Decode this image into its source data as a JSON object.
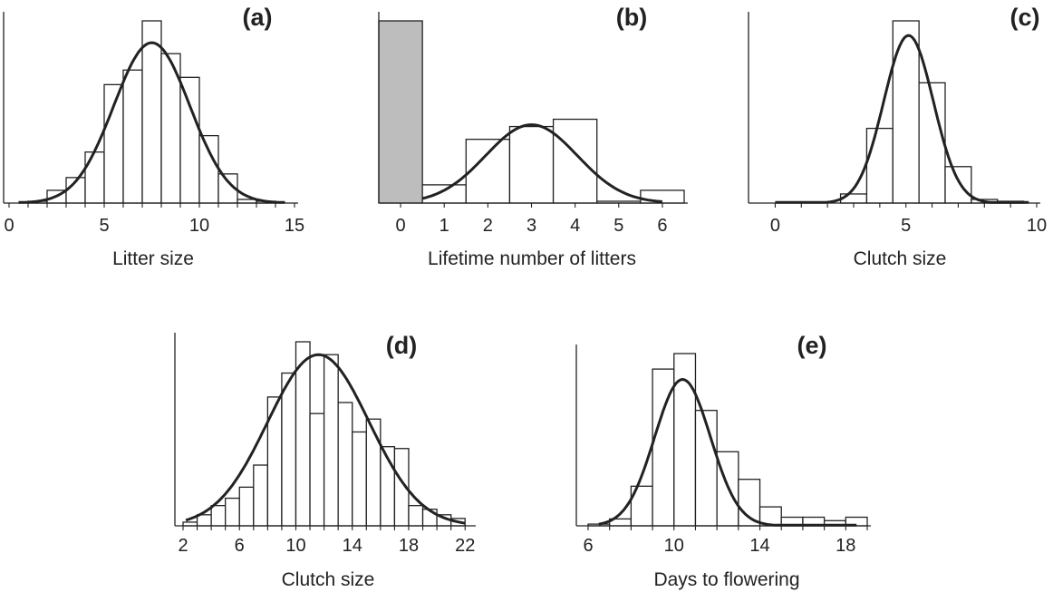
{
  "chart_data": [
    {
      "type": "histogram",
      "panel": "(a)",
      "xlabel": "Litter size",
      "ylabel": "",
      "xticks": [
        0,
        5,
        10,
        15
      ],
      "xlim": [
        0,
        15
      ],
      "ylim": [
        0,
        100
      ],
      "bin_width": 1,
      "bins": [
        {
          "x0": 1,
          "x1": 2,
          "value": 1
        },
        {
          "x0": 2,
          "x1": 3,
          "value": 7
        },
        {
          "x0": 3,
          "x1": 4,
          "value": 14
        },
        {
          "x0": 4,
          "x1": 5,
          "value": 28
        },
        {
          "x0": 5,
          "x1": 6,
          "value": 65
        },
        {
          "x0": 6,
          "x1": 7,
          "value": 73
        },
        {
          "x0": 7,
          "x1": 8,
          "value": 100
        },
        {
          "x0": 8,
          "x1": 9,
          "value": 82
        },
        {
          "x0": 9,
          "x1": 10,
          "value": 69
        },
        {
          "x0": 10,
          "x1": 11,
          "value": 37
        },
        {
          "x0": 11,
          "x1": 12,
          "value": 16
        },
        {
          "x0": 12,
          "x1": 13,
          "value": 2
        },
        {
          "x0": 13,
          "x1": 14,
          "value": 1
        }
      ],
      "curve": {
        "kind": "normal",
        "mean": 7.5,
        "sd": 2.0,
        "peak": 88
      }
    },
    {
      "type": "histogram",
      "panel": "(b)",
      "xlabel": "Lifetime number of litters",
      "ylabel": "",
      "xticks": [
        0,
        1,
        2,
        3,
        4,
        5,
        6
      ],
      "xlim": [
        -0.5,
        6.5
      ],
      "ylim": [
        0,
        100
      ],
      "bin_width": 1,
      "bins": [
        {
          "x0": -0.5,
          "x1": 0.5,
          "value": 100,
          "fill": "#bdbdbd"
        },
        {
          "x0": 0.5,
          "x1": 1.5,
          "value": 10
        },
        {
          "x0": 1.5,
          "x1": 2.5,
          "value": 35
        },
        {
          "x0": 2.5,
          "x1": 3.5,
          "value": 42
        },
        {
          "x0": 3.5,
          "x1": 4.5,
          "value": 46
        },
        {
          "x0": 4.5,
          "x1": 5.5,
          "value": 1
        },
        {
          "x0": 5.5,
          "x1": 6.5,
          "value": 7
        }
      ],
      "curve": {
        "kind": "normal",
        "mean": 3.0,
        "sd": 1.05,
        "peak": 43,
        "xmin": 0.5,
        "xmax": 6.0
      }
    },
    {
      "type": "histogram",
      "panel": "(c)",
      "xlabel": "Clutch size",
      "ylabel": "",
      "xticks": [
        0,
        5,
        10
      ],
      "xlim": [
        -0.5,
        10.0
      ],
      "ylim": [
        0,
        100
      ],
      "bin_width": 1,
      "bins": [
        {
          "x0": 2.5,
          "x1": 3.5,
          "value": 5
        },
        {
          "x0": 3.5,
          "x1": 4.5,
          "value": 41
        },
        {
          "x0": 4.5,
          "x1": 5.5,
          "value": 100
        },
        {
          "x0": 5.5,
          "x1": 6.5,
          "value": 66
        },
        {
          "x0": 6.5,
          "x1": 7.5,
          "value": 20
        },
        {
          "x0": 7.5,
          "x1": 8.5,
          "value": 2
        },
        {
          "x0": 8.5,
          "x1": 9.5,
          "value": 1
        }
      ],
      "curve": {
        "kind": "normal",
        "mean": 5.1,
        "sd": 0.95,
        "peak": 92,
        "xmin": 0,
        "xmax": 9.7
      }
    },
    {
      "type": "histogram",
      "panel": "(d)",
      "xlabel": "Clutch size",
      "ylabel": "",
      "xticks": [
        2,
        6,
        10,
        14,
        18,
        22
      ],
      "xlim": [
        2,
        22.5
      ],
      "ylim": [
        0,
        100
      ],
      "bin_width": 1,
      "bins": [
        {
          "x0": 2,
          "x1": 3,
          "value": 2
        },
        {
          "x0": 3,
          "x1": 4,
          "value": 6
        },
        {
          "x0": 4,
          "x1": 5,
          "value": 11
        },
        {
          "x0": 5,
          "x1": 6,
          "value": 15
        },
        {
          "x0": 6,
          "x1": 7,
          "value": 21
        },
        {
          "x0": 7,
          "x1": 8,
          "value": 33
        },
        {
          "x0": 8,
          "x1": 9,
          "value": 70
        },
        {
          "x0": 9,
          "x1": 10,
          "value": 83
        },
        {
          "x0": 10,
          "x1": 11,
          "value": 100
        },
        {
          "x0": 11,
          "x1": 12,
          "value": 61
        },
        {
          "x0": 12,
          "x1": 13,
          "value": 93
        },
        {
          "x0": 13,
          "x1": 14,
          "value": 67
        },
        {
          "x0": 14,
          "x1": 15,
          "value": 51
        },
        {
          "x0": 15,
          "x1": 16,
          "value": 58
        },
        {
          "x0": 16,
          "x1": 17,
          "value": 43
        },
        {
          "x0": 17,
          "x1": 18,
          "value": 42
        },
        {
          "x0": 18,
          "x1": 19,
          "value": 11
        },
        {
          "x0": 19,
          "x1": 20,
          "value": 9
        },
        {
          "x0": 20,
          "x1": 21,
          "value": 6
        },
        {
          "x0": 21,
          "x1": 22,
          "value": 4
        }
      ],
      "curve": {
        "kind": "normal",
        "mean": 11.6,
        "sd": 3.6,
        "peak": 93,
        "xmin": 2.2,
        "xmax": 22
      }
    },
    {
      "type": "histogram",
      "panel": "(e)",
      "xlabel": "Days to flowering",
      "ylabel": "",
      "xticks": [
        6,
        10,
        14,
        18
      ],
      "xlim": [
        6,
        19
      ],
      "ylim": [
        0,
        100
      ],
      "bin_width": 1,
      "bins": [
        {
          "x0": 6,
          "x1": 7,
          "value": 1
        },
        {
          "x0": 7,
          "x1": 8,
          "value": 4
        },
        {
          "x0": 8,
          "x1": 9,
          "value": 23
        },
        {
          "x0": 9,
          "x1": 10,
          "value": 91
        },
        {
          "x0": 10,
          "x1": 11,
          "value": 100
        },
        {
          "x0": 11,
          "x1": 12,
          "value": 67
        },
        {
          "x0": 12,
          "x1": 13,
          "value": 43
        },
        {
          "x0": 13,
          "x1": 14,
          "value": 27
        },
        {
          "x0": 14,
          "x1": 15,
          "value": 11
        },
        {
          "x0": 15,
          "x1": 16,
          "value": 5
        },
        {
          "x0": 16,
          "x1": 17,
          "value": 5
        },
        {
          "x0": 17,
          "x1": 18,
          "value": 3
        },
        {
          "x0": 18,
          "x1": 19,
          "value": 5
        }
      ],
      "curve": {
        "kind": "normal",
        "mean": 10.4,
        "sd": 1.3,
        "peak": 85,
        "xmin": 6.5,
        "xmax": 18.5
      }
    }
  ]
}
